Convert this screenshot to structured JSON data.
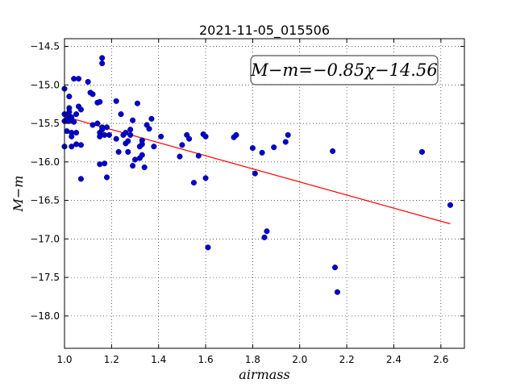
{
  "chart_data": {
    "type": "scatter",
    "title": "2021-11-05_015506",
    "xlabel": "airmass",
    "ylabel": "M−m",
    "xlim": [
      1.0,
      2.7
    ],
    "ylim": [
      -18.42,
      -14.4
    ],
    "y_inverted": true,
    "grid": true,
    "xticks": [
      1.0,
      1.2,
      1.4,
      1.6,
      1.8,
      2.0,
      2.2,
      2.4,
      2.6
    ],
    "xtick_labels": [
      "1.0",
      "1.2",
      "1.4",
      "1.6",
      "1.8",
      "2.0",
      "2.2",
      "2.4",
      "2.6"
    ],
    "yticks": [
      -14.5,
      -15.0,
      -15.5,
      -16.0,
      -16.5,
      -17.0,
      -17.5,
      -18.0
    ],
    "ytick_labels": [
      "−14.5",
      "−15.0",
      "−15.5",
      "−16.0",
      "−16.5",
      "−17.0",
      "−17.5",
      "−18.0"
    ],
    "annotation": "M−m=−0.85χ−14.56",
    "fit": {
      "slope": -0.85,
      "intercept": -14.56,
      "x_range": [
        1.0,
        2.64
      ],
      "color": "#ff0000"
    },
    "point_color": "#0000cc",
    "points": [
      [
        1.0,
        -15.05
      ],
      [
        1.0,
        -15.38
      ],
      [
        1.0,
        -15.47
      ],
      [
        1.0,
        -15.8
      ],
      [
        1.01,
        -15.45
      ],
      [
        1.01,
        -15.6
      ],
      [
        1.02,
        -15.15
      ],
      [
        1.02,
        -15.3
      ],
      [
        1.02,
        -15.35
      ],
      [
        1.02,
        -15.4
      ],
      [
        1.02,
        -15.47
      ],
      [
        1.03,
        -15.42
      ],
      [
        1.03,
        -15.45
      ],
      [
        1.03,
        -15.62
      ],
      [
        1.03,
        -15.67
      ],
      [
        1.03,
        -15.8
      ],
      [
        1.04,
        -14.92
      ],
      [
        1.04,
        -15.48
      ],
      [
        1.05,
        -15.38
      ],
      [
        1.05,
        -15.77
      ],
      [
        1.05,
        -15.62
      ],
      [
        1.06,
        -14.92
      ],
      [
        1.06,
        -15.28
      ],
      [
        1.07,
        -15.32
      ],
      [
        1.07,
        -15.78
      ],
      [
        1.07,
        -16.22
      ],
      [
        1.1,
        -14.96
      ],
      [
        1.11,
        -15.1
      ],
      [
        1.12,
        -15.12
      ],
      [
        1.12,
        -15.52
      ],
      [
        1.14,
        -15.23
      ],
      [
        1.14,
        -15.5
      ],
      [
        1.15,
        -15.22
      ],
      [
        1.15,
        -15.62
      ],
      [
        1.15,
        -15.67
      ],
      [
        1.15,
        -16.03
      ],
      [
        1.16,
        -14.65
      ],
      [
        1.16,
        -14.72
      ],
      [
        1.16,
        -15.55
      ],
      [
        1.16,
        -15.58
      ],
      [
        1.17,
        -16.02
      ],
      [
        1.17,
        -15.65
      ],
      [
        1.18,
        -16.2
      ],
      [
        1.18,
        -15.55
      ],
      [
        1.19,
        -15.65
      ],
      [
        1.22,
        -15.21
      ],
      [
        1.22,
        -15.7
      ],
      [
        1.23,
        -15.87
      ],
      [
        1.24,
        -15.38
      ],
      [
        1.25,
        -15.65
      ],
      [
        1.26,
        -15.62
      ],
      [
        1.26,
        -15.76
      ],
      [
        1.27,
        -15.87
      ],
      [
        1.27,
        -15.73
      ],
      [
        1.28,
        -15.58
      ],
      [
        1.28,
        -15.65
      ],
      [
        1.29,
        -15.46
      ],
      [
        1.29,
        -16.05
      ],
      [
        1.3,
        -15.97
      ],
      [
        1.31,
        -15.24
      ],
      [
        1.32,
        -15.8
      ],
      [
        1.32,
        -15.95
      ],
      [
        1.33,
        -15.72
      ],
      [
        1.33,
        -15.91
      ],
      [
        1.33,
        -15.77
      ],
      [
        1.34,
        -16.07
      ],
      [
        1.35,
        -15.52
      ],
      [
        1.36,
        -15.57
      ],
      [
        1.37,
        -15.44
      ],
      [
        1.38,
        -15.8
      ],
      [
        1.41,
        -15.67
      ],
      [
        1.49,
        -15.93
      ],
      [
        1.5,
        -15.78
      ],
      [
        1.52,
        -15.65
      ],
      [
        1.53,
        -15.7
      ],
      [
        1.55,
        -16.27
      ],
      [
        1.57,
        -15.92
      ],
      [
        1.59,
        -15.64
      ],
      [
        1.6,
        -15.67
      ],
      [
        1.6,
        -16.21
      ],
      [
        1.61,
        -17.11
      ],
      [
        1.72,
        -15.68
      ],
      [
        1.73,
        -15.65
      ],
      [
        1.8,
        -15.82
      ],
      [
        1.81,
        -16.15
      ],
      [
        1.84,
        -15.88
      ],
      [
        1.85,
        -16.98
      ],
      [
        1.86,
        -16.9
      ],
      [
        1.89,
        -15.81
      ],
      [
        1.94,
        -15.74
      ],
      [
        1.95,
        -15.65
      ],
      [
        2.14,
        -15.86
      ],
      [
        2.15,
        -17.37
      ],
      [
        2.16,
        -17.69
      ],
      [
        2.52,
        -15.87
      ],
      [
        2.64,
        -16.56
      ]
    ]
  }
}
